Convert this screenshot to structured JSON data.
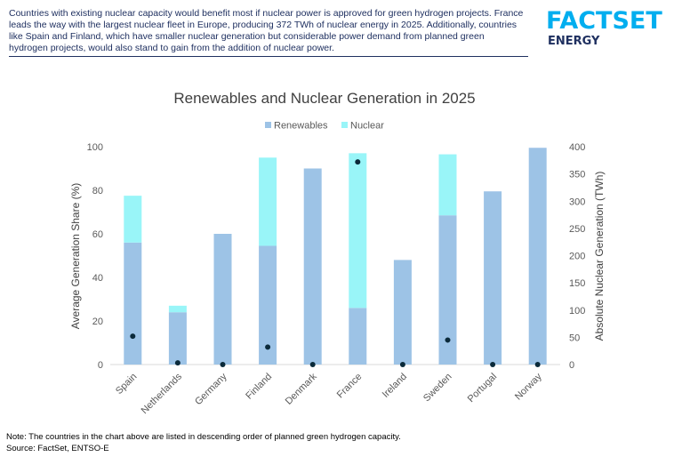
{
  "header": {
    "intro_text": "Countries with existing nuclear capacity would benefit most if nuclear power is approved for green hydrogen projects. France leads the way with the largest nuclear fleet in Europe, producing 372 TWh of nuclear energy in 2025. Additionally, countries like Spain and Finland, which have smaller nuclear generation but considerable power demand from planned green hydrogen projects, would also stand to gain from the addition of nuclear power.",
    "logo_main": "FACTSET",
    "logo_sub": "ENERGY"
  },
  "chart_data": {
    "type": "bar",
    "stacked": true,
    "title": "Renewables and Nuclear Generation in 2025",
    "categories": [
      "Spain",
      "Netherlands",
      "Germany",
      "Finland",
      "Denmark",
      "France",
      "Ireland",
      "Sweden",
      "Portugal",
      "Norway"
    ],
    "series": [
      {
        "name": "Renewables",
        "color": "#9dc3e6",
        "axis": "left",
        "values": [
          56,
          24,
          60,
          54.5,
          90,
          26,
          48,
          68.5,
          79.5,
          99.5
        ]
      },
      {
        "name": "Nuclear",
        "color": "#99f5f8",
        "axis": "left",
        "values": [
          21.5,
          3,
          0,
          40.5,
          0,
          71,
          0,
          28,
          0,
          0
        ]
      },
      {
        "name": "Absolute Nuclear Generation",
        "type": "scatter",
        "color": "#0b2a3a",
        "axis": "right",
        "values": [
          52,
          3,
          0,
          32,
          0,
          372,
          0,
          45,
          0,
          0
        ]
      }
    ],
    "ylabel": "Average Generation Share (%)",
    "ylim": [
      0,
      100
    ],
    "yticks": [
      "0",
      "20",
      "40",
      "60",
      "80",
      "100"
    ],
    "y2label": "Absolute Nuclear Generation (TWh)",
    "y2lim": [
      0,
      400
    ],
    "y2ticks": [
      "0",
      "50",
      "100",
      "150",
      "200",
      "250",
      "300",
      "350",
      "400"
    ],
    "legend_position": "top",
    "grid": false
  },
  "notes": {
    "note": "Note: The countries in the chart above are listed in descending order of planned green hydrogen capacity.",
    "source": "Source: FactSet, ENTSO-E"
  }
}
